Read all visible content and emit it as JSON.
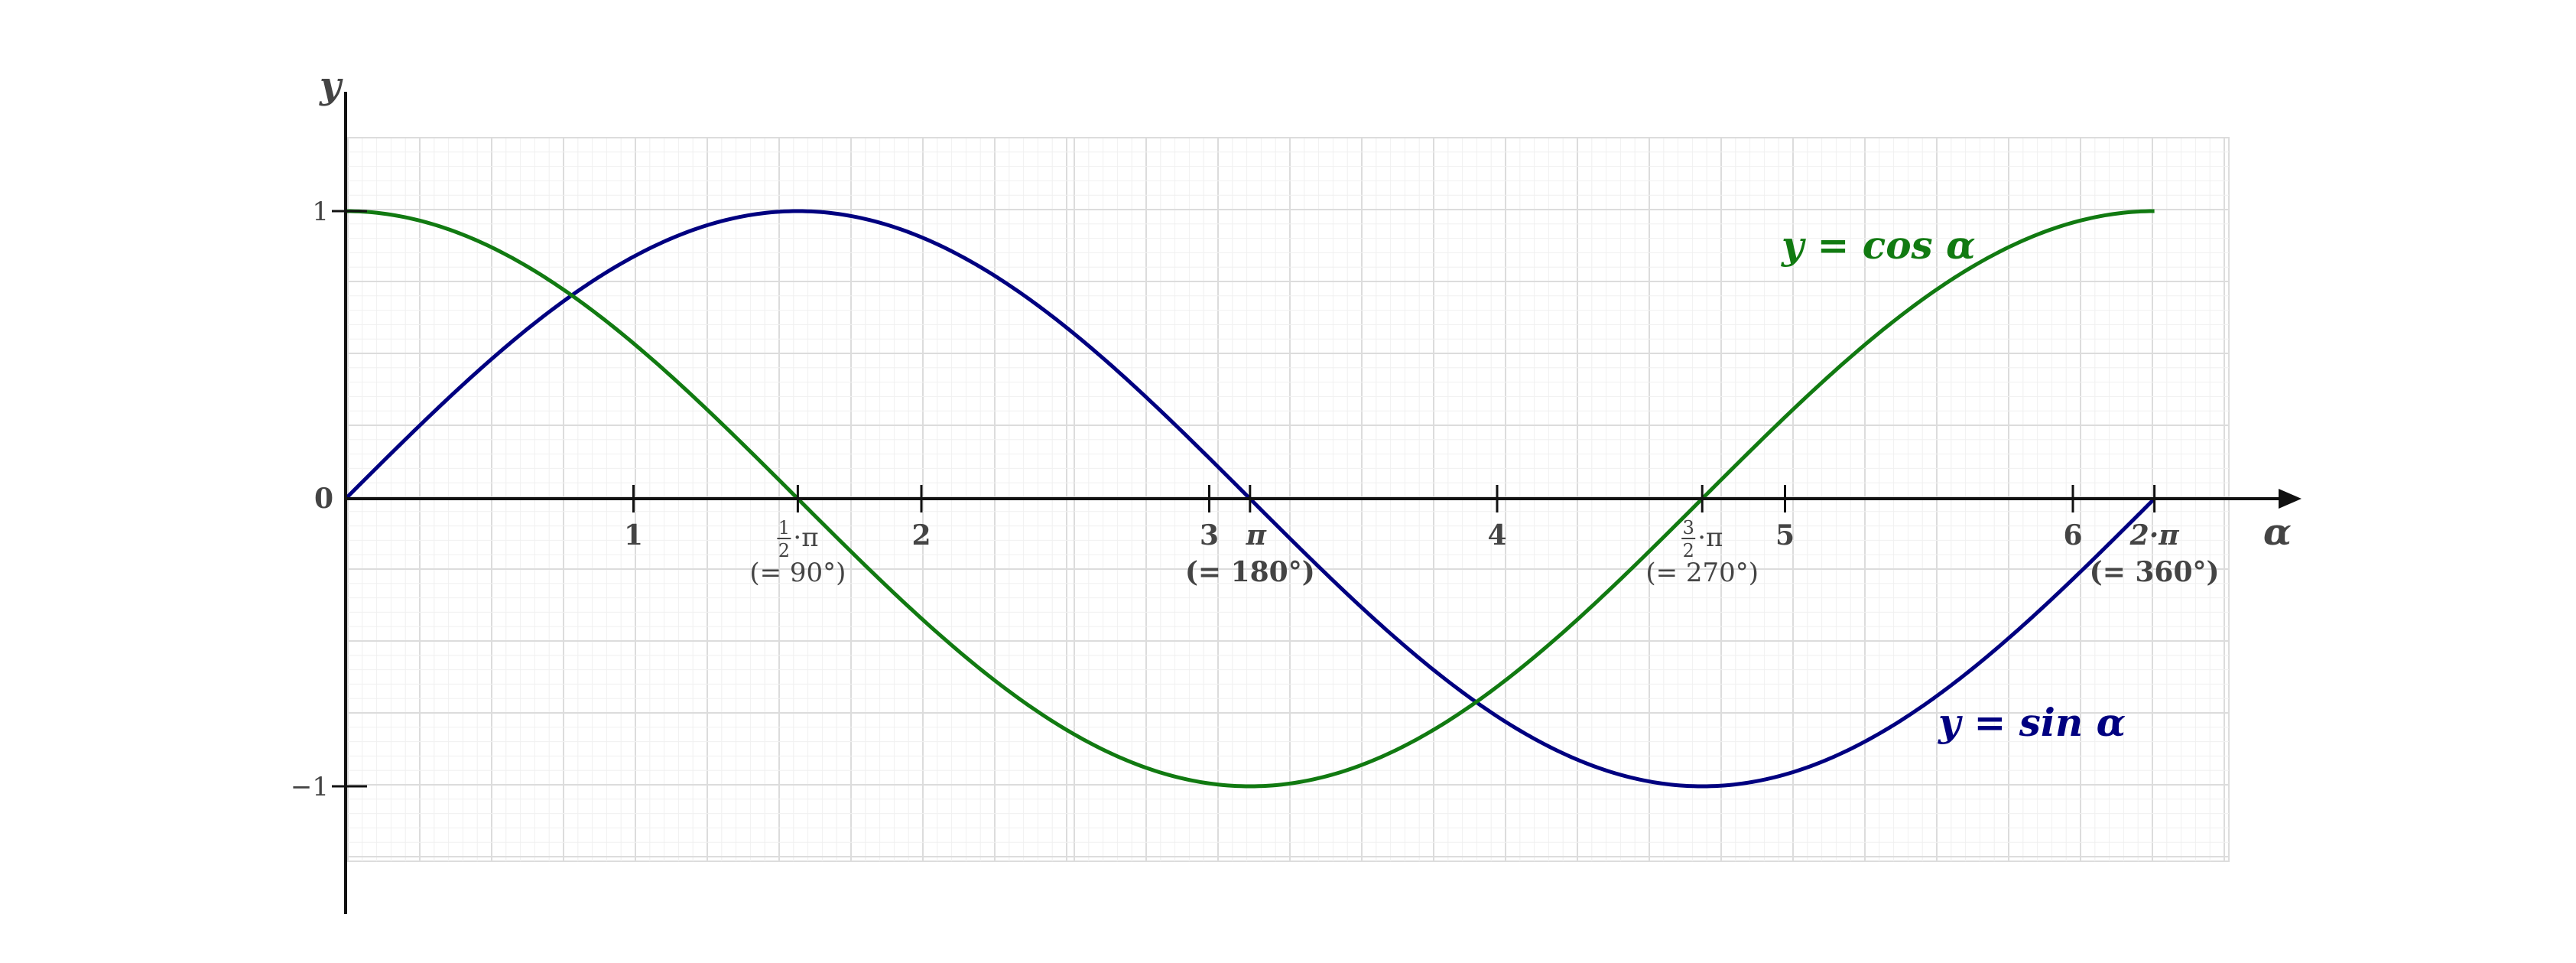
{
  "chart_data": {
    "type": "line",
    "title": "",
    "xlabel": "α",
    "ylabel": "y",
    "xlim": [
      0,
      6.85
    ],
    "ylim": [
      -1.45,
      1.45
    ],
    "grid": true,
    "x_ticks": [
      {
        "value": 1,
        "label": "1"
      },
      {
        "value": 2,
        "label": "2"
      },
      {
        "value": 3,
        "label": "3"
      },
      {
        "value": 4,
        "label": "4"
      },
      {
        "value": 5,
        "label": "5"
      },
      {
        "value": 6,
        "label": "6"
      }
    ],
    "pi_ticks": [
      {
        "value": 1.5708,
        "num": "1",
        "den": "2",
        "text": "·π",
        "deg": "(= 90°)",
        "bold": false
      },
      {
        "value": 3.1416,
        "text": "π",
        "deg": "(= 180°)",
        "bold": true
      },
      {
        "value": 4.7124,
        "num": "3",
        "den": "2",
        "text": "·π",
        "deg": "(= 270°)",
        "bold": false
      },
      {
        "value": 6.2832,
        "text": "2·π",
        "deg": "(= 360°)",
        "bold": true
      }
    ],
    "y_ticks": [
      {
        "value": 1,
        "label": "1"
      },
      {
        "value": 0,
        "label": "0"
      },
      {
        "value": -1,
        "label": "−1"
      }
    ],
    "series": [
      {
        "name": "y = sin α",
        "color": "#000080",
        "x": [
          0,
          0.3927,
          0.7854,
          1.1781,
          1.5708,
          1.9635,
          2.3562,
          2.7489,
          3.1416,
          3.5343,
          3.927,
          4.3197,
          4.7124,
          5.1051,
          5.4978,
          5.8905,
          6.2832
        ],
        "y": [
          0,
          0.383,
          0.707,
          0.924,
          1,
          0.924,
          0.707,
          0.383,
          0,
          -0.383,
          -0.707,
          -0.924,
          -1,
          -0.924,
          -0.707,
          -0.383,
          0
        ]
      },
      {
        "name": "y = cos α",
        "color": "#117a11",
        "x": [
          0,
          0.3927,
          0.7854,
          1.1781,
          1.5708,
          1.9635,
          2.3562,
          2.7489,
          3.1416,
          3.5343,
          3.927,
          4.3197,
          4.7124,
          5.1051,
          5.4978,
          5.8905,
          6.2832
        ],
        "y": [
          1,
          0.924,
          0.707,
          0.383,
          0,
          -0.383,
          -0.707,
          -0.924,
          -1,
          -0.924,
          -0.707,
          -0.383,
          0,
          0.383,
          0.707,
          0.924,
          1
        ]
      }
    ]
  }
}
